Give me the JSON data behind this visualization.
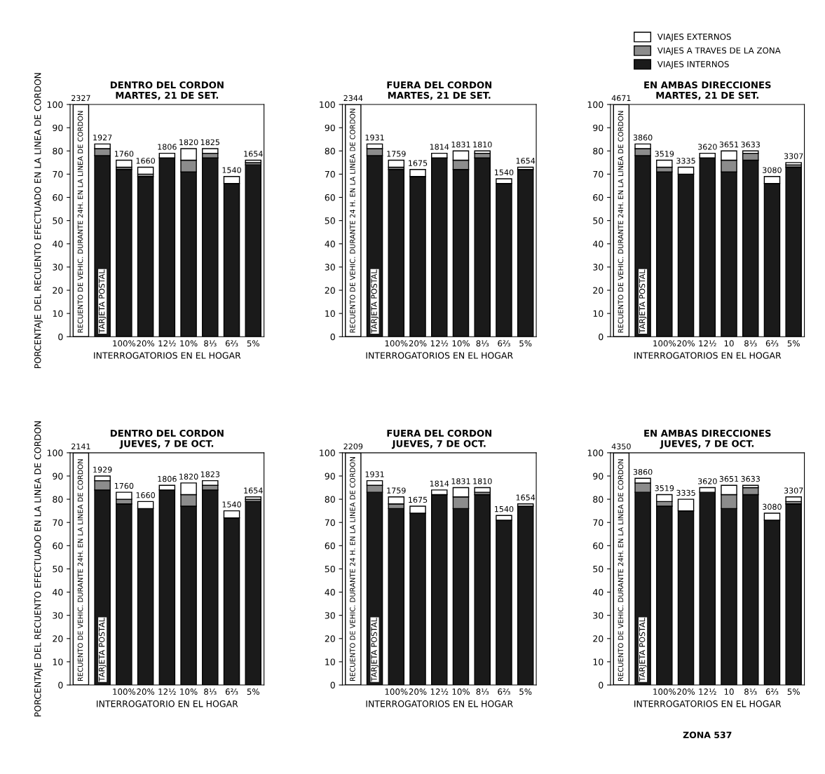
{
  "chart_data": [
    {
      "type": "bar",
      "title": "DENTRO DEL CORDON",
      "subtitle": "MARTES, 21 DE SET.",
      "xlabel": "INTERROGATORIOS EN EL HOGAR",
      "ylabel": "PORCENTAJE DEL RECUENTO EFECTUADO EN LA LINEA DE CORDON",
      "stacked": true,
      "legend": false,
      "grid": false,
      "ylim": [
        0,
        100
      ],
      "yticks": [
        0,
        10,
        20,
        30,
        40,
        50,
        60,
        70,
        80,
        90,
        100
      ],
      "categories": [
        "RECUENTO DE VEHIC. DURANTE 24H. EN LA LINEA DE CORDON",
        "TARJETA POSTAL",
        "100%",
        "20%",
        "12½",
        "10%",
        "8⅓",
        "6⅔",
        "5%"
      ],
      "series": [
        {
          "color": "#1a1a1a",
          "values": [
            0,
            78,
            72,
            69,
            77,
            71,
            77,
            66,
            74
          ]
        },
        {
          "color": "#8c8c8c",
          "values": [
            0,
            3,
            1,
            1,
            0,
            5,
            2,
            0,
            1
          ]
        },
        {
          "color": "#ffffff",
          "values": [
            100,
            2,
            3,
            3,
            2,
            5,
            2,
            3,
            1
          ]
        }
      ],
      "annotations": [
        {
          "text": "2327",
          "x": "RECUENTO DE VEHIC. DURANTE 24H. EN LA LINEA DE CORDON",
          "y": 100
        },
        {
          "text": "1927",
          "x": "TARJETA POSTAL",
          "y": 83
        },
        {
          "text": "1760",
          "x": "100%",
          "y": 76
        },
        {
          "text": "1660",
          "x": "20%",
          "y": 73
        },
        {
          "text": "1806",
          "x": "12½",
          "y": 79
        },
        {
          "text": "1820",
          "x": "10%",
          "y": 81
        },
        {
          "text": "1825",
          "x": "8⅓",
          "y": 81
        },
        {
          "text": "1540",
          "x": "6⅔",
          "y": 69
        },
        {
          "text": "1654",
          "x": "5%",
          "y": 76
        }
      ]
    },
    {
      "type": "bar",
      "title": "FUERA DEL CORDON",
      "subtitle": "MARTES, 21 DE SET.",
      "xlabel": "INTERROGATORIOS EN EL HOGAR",
      "stacked": true,
      "legend": false,
      "grid": false,
      "ylim": [
        0,
        100
      ],
      "yticks": [
        0,
        10,
        20,
        30,
        40,
        50,
        60,
        70,
        80,
        90,
        100
      ],
      "categories": [
        "RECUENTO DE VEHIC. DURANTE 24 H. EN LA LINEA DE CORDON",
        "TARJETA POSTAL",
        "100%",
        "20%",
        "12½",
        "10%",
        "8⅓",
        "6⅔",
        "5%"
      ],
      "series": [
        {
          "color": "#1a1a1a",
          "values": [
            0,
            78,
            72,
            69,
            77,
            72,
            77,
            66,
            72
          ]
        },
        {
          "color": "#8c8c8c",
          "values": [
            0,
            3,
            1,
            0,
            0,
            4,
            2,
            0,
            0
          ]
        },
        {
          "color": "#ffffff",
          "values": [
            100,
            2,
            3,
            3,
            2,
            4,
            1,
            2,
            1
          ]
        }
      ],
      "annotations": [
        {
          "text": "2344",
          "x": "RECUENTO DE VEHIC. DURANTE 24 H. EN LA LINEA DE CORDON",
          "y": 100
        },
        {
          "text": "1931",
          "x": "TARJETA POSTAL",
          "y": 83
        },
        {
          "text": "1759",
          "x": "100%",
          "y": 76
        },
        {
          "text": "1675",
          "x": "20%",
          "y": 72
        },
        {
          "text": "1814",
          "x": "12½",
          "y": 79
        },
        {
          "text": "1831",
          "x": "10%",
          "y": 80
        },
        {
          "text": "1810",
          "x": "8⅓",
          "y": 80
        },
        {
          "text": "1540",
          "x": "6⅔",
          "y": 68
        },
        {
          "text": "1654",
          "x": "5%",
          "y": 73
        }
      ]
    },
    {
      "type": "bar",
      "title": "EN AMBAS DIRECCIONES",
      "subtitle": "MARTES, 21 DE SET.",
      "xlabel": "INTERROGATORIOS EN EL HOGAR",
      "stacked": true,
      "legend": "top",
      "grid": false,
      "ylim": [
        0,
        100
      ],
      "yticks": [
        0,
        10,
        20,
        30,
        40,
        50,
        60,
        70,
        80,
        90,
        100
      ],
      "categories": [
        "RECUENTO DE VEHIC. DURANTE 24H. EN LA LINEA DE CORDON",
        "TARJETA POSTAL",
        "100%",
        "20%",
        "12½",
        "10",
        "8⅓",
        "6⅔",
        "5%"
      ],
      "series": [
        {
          "name": "VIAJES INTERNOS",
          "color": "#1a1a1a",
          "values": [
            0,
            78,
            71,
            70,
            77,
            71,
            76,
            66,
            73
          ]
        },
        {
          "name": "VIAJES A TRAVES DE LA ZONA",
          "color": "#8c8c8c",
          "values": [
            0,
            3,
            2,
            0,
            0,
            5,
            3,
            0,
            1
          ]
        },
        {
          "name": "VIAJES EXTERNOS",
          "color": "#ffffff",
          "values": [
            100,
            2,
            3,
            3,
            2,
            4,
            1,
            3,
            1
          ]
        }
      ],
      "annotations": [
        {
          "text": "4671",
          "x": "RECUENTO DE VEHIC. DURANTE 24H. EN LA LINEA DE CORDON",
          "y": 100
        },
        {
          "text": "3860",
          "x": "TARJETA POSTAL",
          "y": 83
        },
        {
          "text": "3519",
          "x": "100%",
          "y": 76
        },
        {
          "text": "3335",
          "x": "20%",
          "y": 73
        },
        {
          "text": "3620",
          "x": "12½",
          "y": 79
        },
        {
          "text": "3651",
          "x": "10",
          "y": 80
        },
        {
          "text": "3633",
          "x": "8⅓",
          "y": 80
        },
        {
          "text": "3080",
          "x": "6⅔",
          "y": 69
        },
        {
          "text": "3307",
          "x": "5%",
          "y": 75
        }
      ]
    },
    {
      "type": "bar",
      "title": "DENTRO DEL CORDON",
      "subtitle": "JUEVES, 7 DE OCT.",
      "xlabel": "INTERROGATORIO EN EL HOGAR",
      "ylabel": "PORCENTAJE DEL RECUENTO EFECTUADO EN LA LINEA DE CORDON",
      "stacked": true,
      "legend": false,
      "grid": false,
      "ylim": [
        0,
        100
      ],
      "yticks": [
        0,
        10,
        20,
        30,
        40,
        50,
        60,
        70,
        80,
        90,
        100
      ],
      "categories": [
        "RECUENTO DE VEHIC. DURANTE 24H. EN LA LINEA DE CORDON",
        "TARJETA POSTAL",
        "100%",
        "20%",
        "12½",
        "10%",
        "8⅓",
        "6⅔",
        "5%"
      ],
      "series": [
        {
          "color": "#1a1a1a",
          "values": [
            0,
            84,
            78,
            76,
            84,
            77,
            84,
            72,
            79
          ]
        },
        {
          "color": "#8c8c8c",
          "values": [
            0,
            4,
            2,
            0,
            0,
            5,
            2,
            0,
            1
          ]
        },
        {
          "color": "#ffffff",
          "values": [
            100,
            2,
            3,
            3,
            2,
            5,
            2,
            3,
            1
          ]
        }
      ],
      "annotations": [
        {
          "text": "2141",
          "x": "RECUENTO DE VEHIC. DURANTE 24H. EN LA LINEA DE CORDON",
          "y": 100
        },
        {
          "text": "1929",
          "x": "TARJETA POSTAL",
          "y": 90
        },
        {
          "text": "1760",
          "x": "100%",
          "y": 83
        },
        {
          "text": "1660",
          "x": "20%",
          "y": 79
        },
        {
          "text": "1806",
          "x": "12½",
          "y": 86
        },
        {
          "text": "1820",
          "x": "10%",
          "y": 87
        },
        {
          "text": "1823",
          "x": "8⅓",
          "y": 88
        },
        {
          "text": "1540",
          "x": "6⅔",
          "y": 75
        },
        {
          "text": "1654",
          "x": "5%",
          "y": 81
        }
      ]
    },
    {
      "type": "bar",
      "title": "FUERA DEL CORDON",
      "subtitle": "JUEVES, 7 DE OCT.",
      "xlabel": "INTERROGATORIOS EN EL HOGAR",
      "stacked": true,
      "legend": false,
      "grid": false,
      "ylim": [
        0,
        100
      ],
      "yticks": [
        0,
        10,
        20,
        30,
        40,
        50,
        60,
        70,
        80,
        90,
        100
      ],
      "categories": [
        "RECUENTO DE VEHIC. DURANTE 24 H. EN LA LINEA DE CORDON",
        "TARJETA POSTAL",
        "100%",
        "20%",
        "12½",
        "10%",
        "8⅓",
        "6⅔",
        "5%"
      ],
      "series": [
        {
          "color": "#1a1a1a",
          "values": [
            0,
            83,
            76,
            74,
            82,
            76,
            82,
            71,
            77
          ]
        },
        {
          "color": "#8c8c8c",
          "values": [
            0,
            3,
            2,
            0,
            0,
            5,
            1,
            0,
            0
          ]
        },
        {
          "color": "#ffffff",
          "values": [
            100,
            2,
            3,
            3,
            2,
            4,
            2,
            2,
            1
          ]
        }
      ],
      "annotations": [
        {
          "text": "2209",
          "x": "RECUENTO DE VEHIC. DURANTE 24 H. EN LA LINEA DE CORDON",
          "y": 100
        },
        {
          "text": "1931",
          "x": "TARJETA POSTAL",
          "y": 88
        },
        {
          "text": "1759",
          "x": "100%",
          "y": 81
        },
        {
          "text": "1675",
          "x": "20%",
          "y": 77
        },
        {
          "text": "1814",
          "x": "12½",
          "y": 84
        },
        {
          "text": "1831",
          "x": "10%",
          "y": 85
        },
        {
          "text": "1810",
          "x": "8⅓",
          "y": 85
        },
        {
          "text": "1540",
          "x": "6⅔",
          "y": 73
        },
        {
          "text": "1654",
          "x": "5%",
          "y": 78
        }
      ]
    },
    {
      "type": "bar",
      "title": "EN AMBAS DIRECCIONES",
      "subtitle": "JUEVES, 7 DE OCT.",
      "xlabel": "INTERROGATORIOS EN EL HOGAR",
      "stacked": true,
      "legend": false,
      "grid": false,
      "ylim": [
        0,
        100
      ],
      "yticks": [
        0,
        10,
        20,
        30,
        40,
        50,
        60,
        70,
        80,
        90,
        100
      ],
      "categories": [
        "RECUENTO DE VEHIC. DURANTE 24H. EN LA LINEA DE CORDON",
        "TARJETA POSTAL",
        "100%",
        "20%",
        "12½",
        "10",
        "8⅓",
        "6⅔",
        "5%"
      ],
      "series": [
        {
          "color": "#1a1a1a",
          "values": [
            0,
            83,
            77,
            75,
            83,
            76,
            82,
            71,
            78
          ]
        },
        {
          "color": "#8c8c8c",
          "values": [
            0,
            4,
            2,
            0,
            0,
            6,
            3,
            0,
            1
          ]
        },
        {
          "color": "#ffffff",
          "values": [
            100,
            2,
            3,
            5,
            2,
            4,
            1,
            3,
            2
          ]
        }
      ],
      "annotations": [
        {
          "text": "4350",
          "x": "RECUENTO DE VEHIC. DURANTE 24H. EN LA LINEA DE CORDON",
          "y": 100
        },
        {
          "text": "3860",
          "x": "TARJETA POSTAL",
          "y": 89
        },
        {
          "text": "3519",
          "x": "100%",
          "y": 82
        },
        {
          "text": "3335",
          "x": "20%",
          "y": 80
        },
        {
          "text": "3620",
          "x": "12½",
          "y": 85
        },
        {
          "text": "3651",
          "x": "10",
          "y": 86
        },
        {
          "text": "3633",
          "x": "8⅓",
          "y": 86
        },
        {
          "text": "3080",
          "x": "6⅔",
          "y": 74
        },
        {
          "text": "3307",
          "x": "5%",
          "y": 81
        },
        "ZONA 537"
      ]
    }
  ]
}
